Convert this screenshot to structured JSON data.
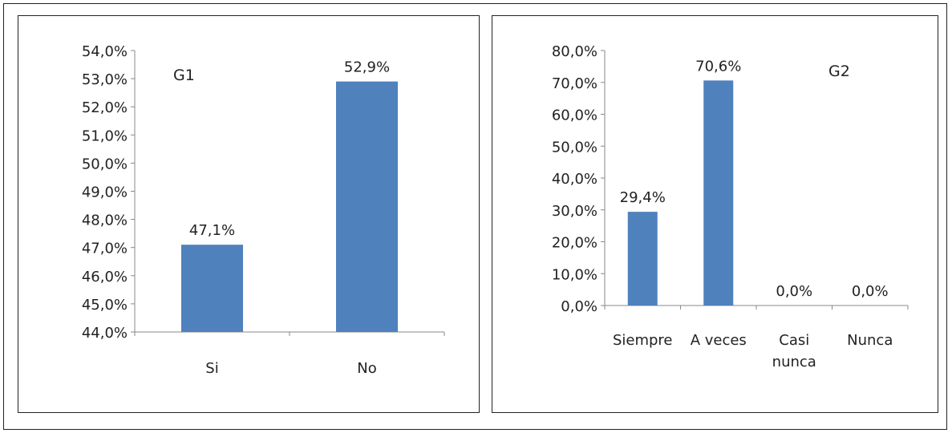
{
  "chart_data": [
    {
      "type": "bar",
      "title": "G1",
      "categories": [
        "Si",
        "No"
      ],
      "values": [
        47.1,
        52.9
      ],
      "data_labels": [
        "47,1%",
        "52,9%"
      ],
      "ylim": [
        44,
        54
      ],
      "yticks": [
        "44,0%",
        "45,0%",
        "46,0%",
        "47,0%",
        "48,0%",
        "49,0%",
        "50,0%",
        "51,0%",
        "52,0%",
        "53,0%",
        "54,0%"
      ],
      "ytick_values": [
        44,
        45,
        46,
        47,
        48,
        49,
        50,
        51,
        52,
        53,
        54
      ],
      "grid": false,
      "legend": "none",
      "bar_color": "#4f81bd"
    },
    {
      "type": "bar",
      "title": "G2",
      "categories": [
        [
          "Siempre"
        ],
        [
          "A veces"
        ],
        [
          "Casi",
          "nunca"
        ],
        [
          "Nunca"
        ]
      ],
      "values": [
        29.4,
        70.6,
        0.0,
        0.0
      ],
      "data_labels": [
        "29,4%",
        "70,6%",
        "0,0%",
        "0,0%"
      ],
      "ylim": [
        0,
        80
      ],
      "yticks": [
        "0,0%",
        "10,0%",
        "20,0%",
        "30,0%",
        "40,0%",
        "50,0%",
        "60,0%",
        "70,0%",
        "80,0%"
      ],
      "ytick_values": [
        0,
        10,
        20,
        30,
        40,
        50,
        60,
        70,
        80
      ],
      "grid": false,
      "legend": "none",
      "bar_color": "#4f81bd"
    }
  ]
}
